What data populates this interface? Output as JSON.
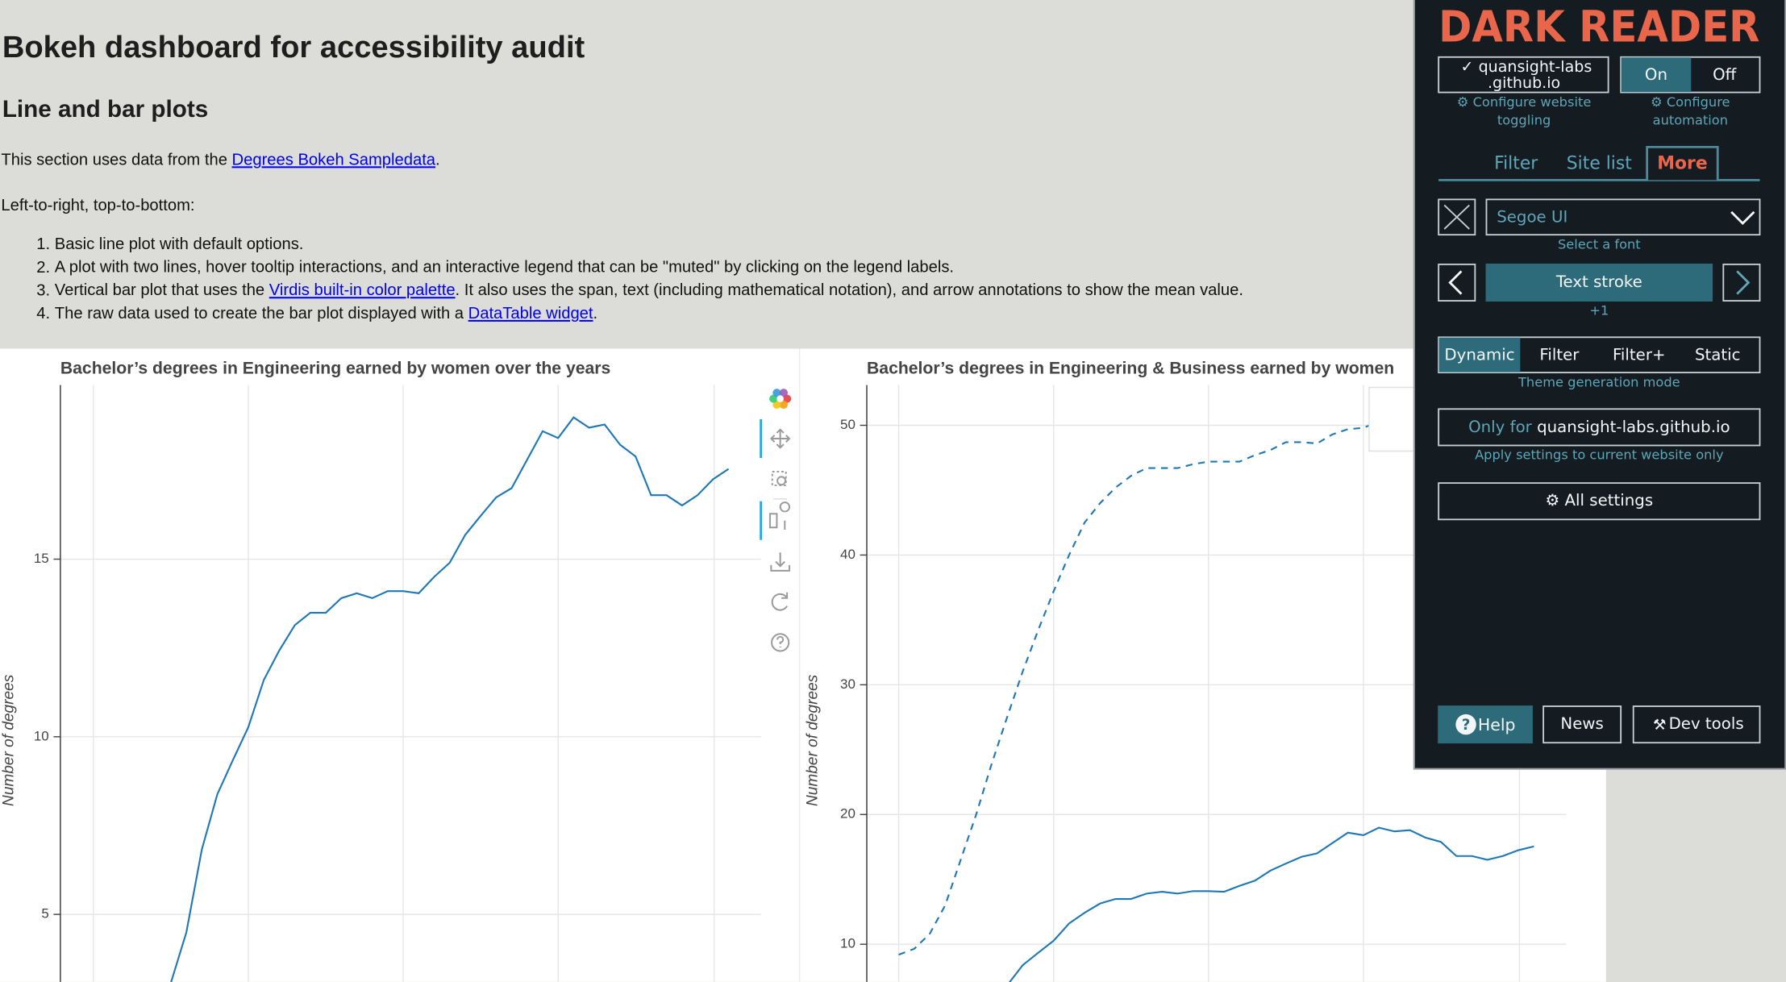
{
  "page": {
    "title": "Bokeh dashboard for accessibility audit",
    "subtitle": "Line and bar plots",
    "intro": [
      {
        "text": "This section uses data from the "
      },
      {
        "link": "Degrees Bokeh Sampledata"
      },
      {
        "text": "."
      }
    ],
    "order_note": "Left-to-right, top-to-bottom:",
    "list": [
      {
        "marker": "1.",
        "parts": [
          {
            "text": "Basic line plot with default options."
          }
        ]
      },
      {
        "marker": "2.",
        "parts": [
          {
            "text": "A plot with two lines, hover tooltip interactions, and an interactive legend that can be \"muted\" by clicking on the legend labels."
          }
        ]
      },
      {
        "marker": "3.",
        "parts": [
          {
            "text": "Vertical bar plot that uses the "
          },
          {
            "link": "Virdis built-in color palette"
          },
          {
            "text": ". It also uses the span, text (including mathematical notation), and arrow annotations to show the mean value."
          }
        ]
      },
      {
        "marker": "4.",
        "parts": [
          {
            "text": "The raw data used to create the bar plot displayed with a "
          },
          {
            "link": "DataTable widget"
          },
          {
            "text": "."
          }
        ]
      }
    ]
  },
  "chart_data": [
    {
      "type": "line",
      "title": "Bachelor’s degrees in Engineering earned by women over the years",
      "y_label": "Number of degrees",
      "ylim": [
        3.1,
        19.9
      ],
      "yticks": [
        5,
        10,
        15
      ],
      "grid": true,
      "series": [
        {
          "color": "#1f77b4",
          "dash": "solid",
          "values": [
            null,
            null,
            null,
            null,
            null,
            3.07,
            4.49,
            6.83,
            8.38,
            9.34,
            10.27,
            11.6,
            12.43,
            13.14,
            13.49,
            13.49,
            13.9,
            14.04,
            13.9,
            14.1,
            14.1,
            14.04,
            14.5,
            14.9,
            15.68,
            16.22,
            16.74,
            17.0,
            17.8,
            18.6,
            18.41,
            18.99,
            18.7,
            18.79,
            18.22,
            17.89,
            16.8,
            16.8,
            16.51,
            16.8,
            17.25,
            17.54
          ]
        }
      ]
    },
    {
      "type": "line",
      "title": "Bachelor’s degrees in Engineering & Business earned by women",
      "y_label": "Number of degrees",
      "ylim": [
        7.1,
        53.1
      ],
      "yticks": [
        10,
        20,
        30,
        40,
        50
      ],
      "grid": true,
      "series": [
        {
          "color": "#1f77b4",
          "dash": "dashed",
          "values": [
            9.2,
            9.65,
            10.8,
            13.0,
            16.5,
            20.0,
            23.9,
            27.5,
            31.0,
            34.2,
            37.2,
            40.0,
            42.5,
            44.0,
            45.2,
            46.1,
            46.7,
            46.7,
            46.7,
            47.0,
            47.2,
            47.2,
            47.2,
            47.7,
            48.1,
            48.7,
            48.7,
            48.6,
            49.3,
            49.7,
            49.8,
            50.3,
            50.5,
            null,
            null,
            null,
            null,
            null,
            null,
            null,
            null,
            null
          ]
        },
        {
          "color": "#1f77b4",
          "dash": "solid",
          "values": [
            null,
            null,
            null,
            null,
            null,
            null,
            null,
            6.83,
            8.38,
            9.34,
            10.27,
            11.6,
            12.43,
            13.14,
            13.49,
            13.49,
            13.9,
            14.04,
            13.9,
            14.1,
            14.1,
            14.04,
            14.5,
            14.9,
            15.68,
            16.22,
            16.74,
            17.0,
            17.8,
            18.6,
            18.41,
            18.99,
            18.7,
            18.79,
            18.22,
            17.89,
            16.8,
            16.8,
            16.51,
            16.8,
            17.25,
            17.54
          ]
        }
      ]
    }
  ],
  "dark_reader": {
    "logo": "DARK READER",
    "site_lines": [
      "✓ quansight-labs",
      ".github.io"
    ],
    "toggle": [
      "On",
      "Off"
    ],
    "configure_site": [
      "⚙ Configure website",
      "toggling"
    ],
    "configure_auto": [
      "⚙ Configure",
      "automation"
    ],
    "tabs": [
      "Filter",
      "Site list",
      "More"
    ],
    "font": "Segoe UI",
    "font_hint": "Select a font",
    "stroke": "Text stroke",
    "stroke_hint": "+1",
    "modes": [
      "Dynamic",
      "Filter",
      "Filter+",
      "Static"
    ],
    "mode_hint": "Theme generation mode",
    "only_for": {
      "prefix": "Only for ",
      "site": "quansight-labs.github.io"
    },
    "only_hint": "Apply settings to current website only",
    "all_settings": "⚙ All settings",
    "footer": [
      {
        "icon": "?",
        "label": "Help"
      },
      {
        "label": "News"
      },
      {
        "icon": "⚒",
        "label": "Dev tools"
      }
    ]
  }
}
